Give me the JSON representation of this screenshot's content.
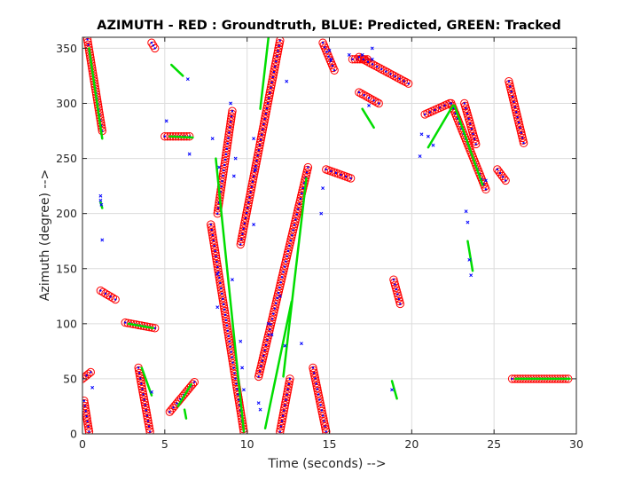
{
  "chart_data": {
    "type": "scatter",
    "title": "AZIMUTH - RED : Groundtruth, BLUE: Predicted, GREEN: Tracked",
    "xlabel": "Time (seconds) -->",
    "ylabel": "Azimuth (degree) -->",
    "xlim": [
      0,
      30
    ],
    "ylim": [
      0,
      360
    ],
    "xticks": [
      "0",
      "5",
      "10",
      "15",
      "20",
      "25",
      "30"
    ],
    "yticks": [
      "0",
      "50",
      "100",
      "150",
      "200",
      "250",
      "300",
      "350"
    ],
    "grid": true,
    "colors": {
      "groundtruth": "#ff0000",
      "predicted": "#0000ff",
      "tracked": "#00dd00"
    },
    "groundtruth_segments": [
      {
        "x": [
          0.3,
          1.2
        ],
        "y": [
          358,
          275
        ]
      },
      {
        "x": [
          0.0,
          0.5
        ],
        "y": [
          50,
          56
        ]
      },
      {
        "x": [
          0.1,
          0.4
        ],
        "y": [
          30,
          2
        ]
      },
      {
        "x": [
          1.1,
          2.0
        ],
        "y": [
          130,
          122
        ]
      },
      {
        "x": [
          2.6,
          4.4
        ],
        "y": [
          101,
          96
        ]
      },
      {
        "x": [
          3.4,
          4.1
        ],
        "y": [
          60,
          2
        ]
      },
      {
        "x": [
          4.2,
          4.4
        ],
        "y": [
          355,
          350
        ]
      },
      {
        "x": [
          5.0,
          6.5
        ],
        "y": [
          270,
          270
        ]
      },
      {
        "x": [
          5.3,
          6.8
        ],
        "y": [
          20,
          47
        ]
      },
      {
        "x": [
          7.8,
          9.8
        ],
        "y": [
          190,
          2
        ]
      },
      {
        "x": [
          8.2,
          9.1
        ],
        "y": [
          200,
          293
        ]
      },
      {
        "x": [
          9.6,
          12.0
        ],
        "y": [
          172,
          357
        ]
      },
      {
        "x": [
          10.7,
          13.7
        ],
        "y": [
          52,
          242
        ]
      },
      {
        "x": [
          12.0,
          12.6
        ],
        "y": [
          2,
          50
        ]
      },
      {
        "x": [
          14.0,
          14.8
        ],
        "y": [
          60,
          2
        ]
      },
      {
        "x": [
          14.6,
          15.3
        ],
        "y": [
          355,
          330
        ]
      },
      {
        "x": [
          14.8,
          16.3
        ],
        "y": [
          240,
          232
        ]
      },
      {
        "x": [
          16.4,
          17.3
        ],
        "y": [
          340,
          340
        ]
      },
      {
        "x": [
          16.8,
          19.8
        ],
        "y": [
          342,
          318
        ]
      },
      {
        "x": [
          16.8,
          18.0
        ],
        "y": [
          310,
          300
        ]
      },
      {
        "x": [
          18.9,
          19.3
        ],
        "y": [
          140,
          118
        ]
      },
      {
        "x": [
          20.8,
          22.3
        ],
        "y": [
          290,
          300
        ]
      },
      {
        "x": [
          22.4,
          24.5
        ],
        "y": [
          300,
          222
        ]
      },
      {
        "x": [
          23.2,
          23.9
        ],
        "y": [
          300,
          263
        ]
      },
      {
        "x": [
          25.2,
          25.7
        ],
        "y": [
          240,
          230
        ]
      },
      {
        "x": [
          25.9,
          26.8
        ],
        "y": [
          320,
          264
        ]
      },
      {
        "x": [
          26.1,
          29.5
        ],
        "y": [
          50,
          50
        ]
      }
    ],
    "tracked_segments": [
      {
        "x": [
          0.4,
          1.2
        ],
        "y": [
          350,
          268
        ]
      },
      {
        "x": [
          1.1,
          1.2
        ],
        "y": [
          210,
          205
        ]
      },
      {
        "x": [
          2.8,
          4.3
        ],
        "y": [
          100,
          96
        ]
      },
      {
        "x": [
          3.6,
          4.2
        ],
        "y": [
          60,
          35
        ]
      },
      {
        "x": [
          5.4,
          6.1
        ],
        "y": [
          335,
          325
        ]
      },
      {
        "x": [
          5.3,
          6.7
        ],
        "y": [
          270,
          269
        ]
      },
      {
        "x": [
          5.8,
          6.6
        ],
        "y": [
          25,
          45
        ]
      },
      {
        "x": [
          6.2,
          6.3
        ],
        "y": [
          22,
          14
        ]
      },
      {
        "x": [
          8.1,
          9.8
        ],
        "y": [
          250,
          2
        ]
      },
      {
        "x": [
          10.8,
          11.3
        ],
        "y": [
          295,
          360
        ]
      },
      {
        "x": [
          11.1,
          12.7
        ],
        "y": [
          5,
          120
        ]
      },
      {
        "x": [
          12.2,
          13.6
        ],
        "y": [
          52,
          232
        ]
      },
      {
        "x": [
          17.0,
          17.7
        ],
        "y": [
          295,
          278
        ]
      },
      {
        "x": [
          18.8,
          19.1
        ],
        "y": [
          48,
          32
        ]
      },
      {
        "x": [
          21.0,
          22.5
        ],
        "y": [
          260,
          298
        ]
      },
      {
        "x": [
          22.6,
          24.3
        ],
        "y": [
          298,
          226
        ]
      },
      {
        "x": [
          23.4,
          23.7
        ],
        "y": [
          175,
          148
        ]
      },
      {
        "x": [
          26.3,
          29.6
        ],
        "y": [
          50,
          50
        ]
      }
    ],
    "predicted_points": [
      {
        "x": 1.1,
        "y": 216
      },
      {
        "x": 1.1,
        "y": 212
      },
      {
        "x": 1.15,
        "y": 208
      },
      {
        "x": 1.2,
        "y": 176
      },
      {
        "x": 0.6,
        "y": 42
      },
      {
        "x": 4.2,
        "y": 38
      },
      {
        "x": 5.1,
        "y": 284
      },
      {
        "x": 6.5,
        "y": 254
      },
      {
        "x": 6.4,
        "y": 322
      },
      {
        "x": 7.9,
        "y": 268
      },
      {
        "x": 8.3,
        "y": 242
      },
      {
        "x": 8.2,
        "y": 115
      },
      {
        "x": 8.2,
        "y": 145
      },
      {
        "x": 9.0,
        "y": 300
      },
      {
        "x": 9.2,
        "y": 234
      },
      {
        "x": 9.3,
        "y": 250
      },
      {
        "x": 9.1,
        "y": 140
      },
      {
        "x": 9.6,
        "y": 84
      },
      {
        "x": 9.7,
        "y": 60
      },
      {
        "x": 9.8,
        "y": 40
      },
      {
        "x": 10.4,
        "y": 268
      },
      {
        "x": 10.5,
        "y": 240
      },
      {
        "x": 10.4,
        "y": 190
      },
      {
        "x": 10.7,
        "y": 28
      },
      {
        "x": 10.8,
        "y": 22
      },
      {
        "x": 11.3,
        "y": 100
      },
      {
        "x": 11.5,
        "y": 90
      },
      {
        "x": 12.0,
        "y": 125
      },
      {
        "x": 12.3,
        "y": 80
      },
      {
        "x": 13.3,
        "y": 82
      },
      {
        "x": 12.4,
        "y": 320
      },
      {
        "x": 14.5,
        "y": 200
      },
      {
        "x": 14.6,
        "y": 223
      },
      {
        "x": 15.0,
        "y": 348
      },
      {
        "x": 15.1,
        "y": 340
      },
      {
        "x": 16.2,
        "y": 344
      },
      {
        "x": 17.0,
        "y": 344
      },
      {
        "x": 17.6,
        "y": 350
      },
      {
        "x": 17.6,
        "y": 340
      },
      {
        "x": 17.4,
        "y": 298
      },
      {
        "x": 18.8,
        "y": 40
      },
      {
        "x": 20.6,
        "y": 272
      },
      {
        "x": 20.5,
        "y": 252
      },
      {
        "x": 21.0,
        "y": 270
      },
      {
        "x": 21.3,
        "y": 262
      },
      {
        "x": 23.3,
        "y": 202
      },
      {
        "x": 23.4,
        "y": 192
      },
      {
        "x": 23.5,
        "y": 158
      },
      {
        "x": 23.6,
        "y": 144
      },
      {
        "x": 24.5,
        "y": 230
      }
    ]
  }
}
